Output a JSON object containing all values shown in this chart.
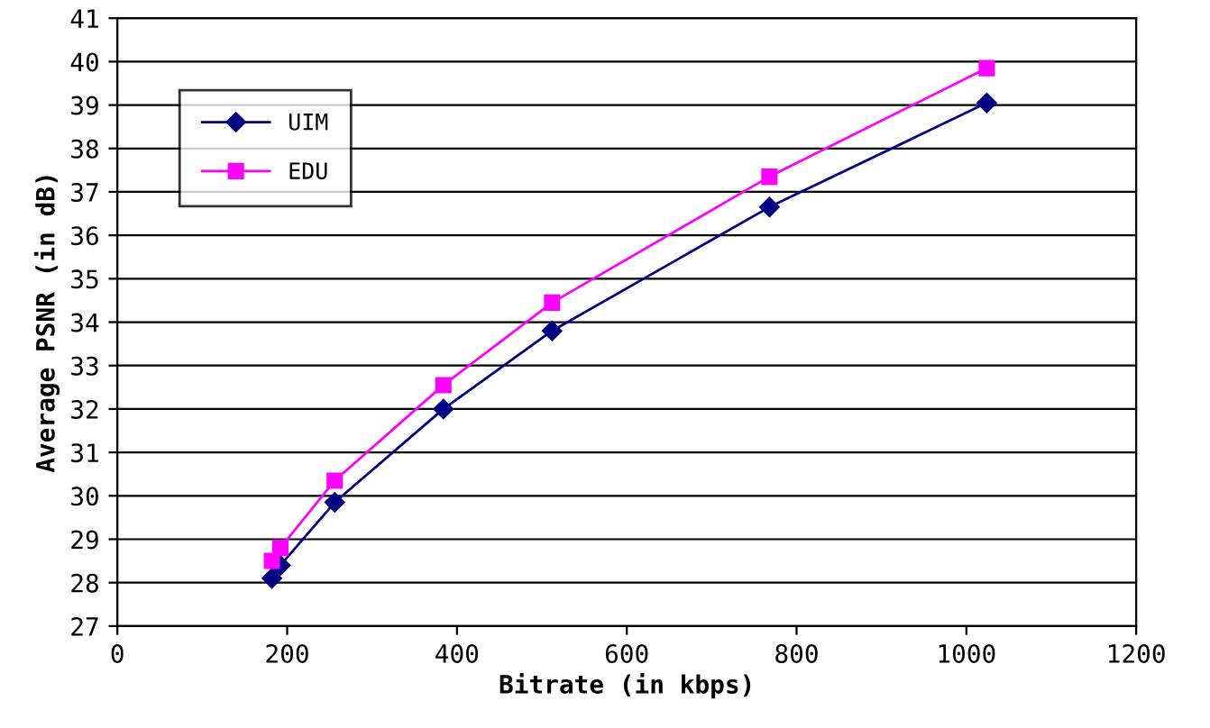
{
  "chart_data": {
    "type": "line",
    "xlabel": "Bitrate (in kbps)",
    "ylabel": "Average PSNR (in dB)",
    "xlim": [
      0,
      1200
    ],
    "xticks": [
      0,
      200,
      400,
      600,
      800,
      1000,
      1200
    ],
    "ylim": [
      27,
      41
    ],
    "yticks": [
      27,
      28,
      29,
      30,
      31,
      32,
      33,
      34,
      35,
      36,
      37,
      38,
      39,
      40,
      41
    ],
    "grid": "y",
    "legend": "top left",
    "series": [
      {
        "name": "UIM",
        "color": "#000080",
        "marker": "diamond",
        "x": [
          182,
          192,
          256,
          384,
          512,
          768,
          1024
        ],
        "values": [
          28.1,
          28.4,
          29.85,
          32.0,
          33.8,
          36.65,
          39.05
        ]
      },
      {
        "name": "EDU",
        "color": "#ff00ff",
        "marker": "square",
        "x": [
          182,
          192,
          256,
          384,
          512,
          768,
          1024
        ],
        "values": [
          28.5,
          28.8,
          30.35,
          32.55,
          34.45,
          37.35,
          39.85
        ]
      }
    ]
  }
}
